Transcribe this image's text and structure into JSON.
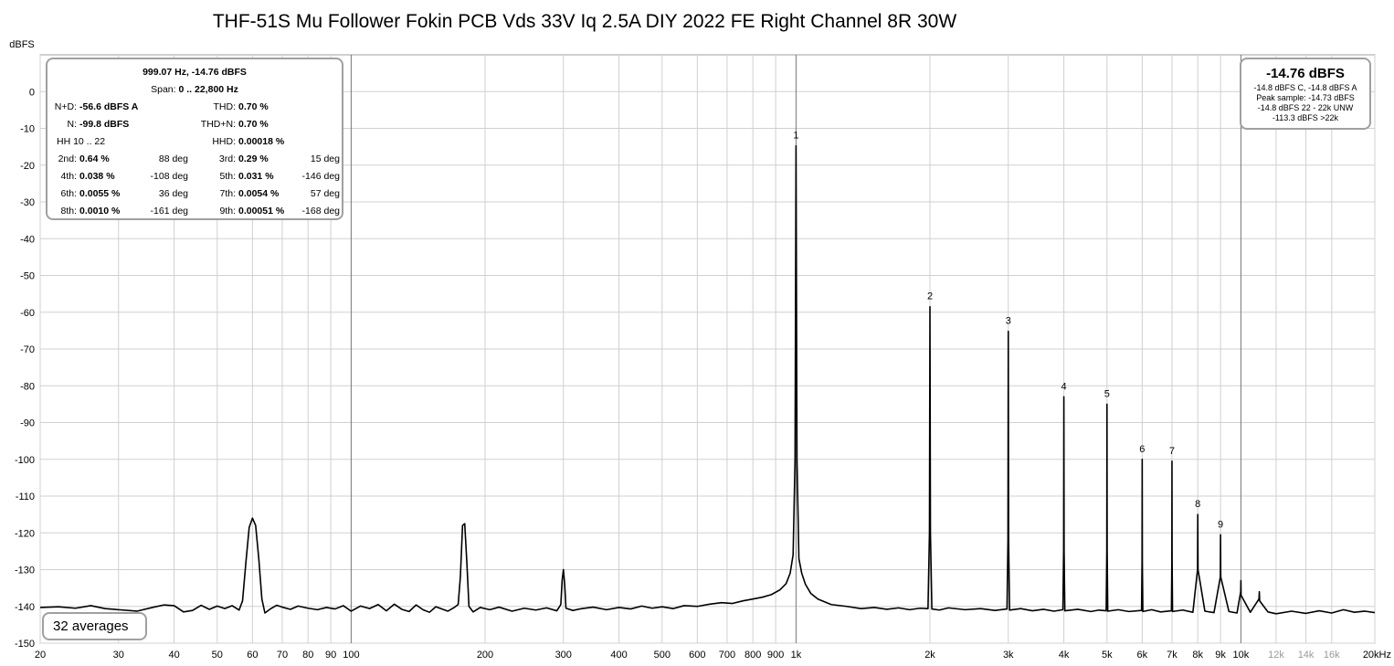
{
  "chart_data": {
    "type": "line",
    "title": "THF-51S Mu Follower Fokin PCB Vds 33V Iq 2.5A DIY 2022 FE Right Channel 8R 30W",
    "y_label": "dBFS",
    "log_x": true,
    "grid": true,
    "xlim": [
      20,
      20000
    ],
    "ylim": [
      -150,
      10
    ],
    "yticks": [
      0,
      -10,
      -20,
      -30,
      -40,
      -50,
      -60,
      -70,
      -80,
      -90,
      -100,
      -110,
      -120,
      -130,
      -140,
      -150
    ],
    "xticks": [
      20,
      30,
      40,
      50,
      60,
      70,
      80,
      90,
      100,
      200,
      300,
      400,
      500,
      600,
      700,
      800,
      900,
      {
        "value": 1000,
        "label": "1k"
      },
      {
        "value": 2000,
        "label": "2k"
      },
      {
        "value": 3000,
        "label": "3k"
      },
      {
        "value": 4000,
        "label": "4k"
      },
      {
        "value": 5000,
        "label": "5k"
      },
      {
        "value": 6000,
        "label": "6k"
      },
      {
        "value": 7000,
        "label": "7k"
      },
      {
        "value": 8000,
        "label": "8k"
      },
      {
        "value": 9000,
        "label": "9k"
      },
      {
        "value": 10000,
        "label": "10k"
      },
      {
        "value": 12000,
        "label": "12k",
        "color": "#999999"
      },
      {
        "value": 14000,
        "label": "14k",
        "color": "#999999"
      },
      {
        "value": 16000,
        "label": "16k",
        "color": "#999999"
      },
      {
        "value": 20000,
        "label": "20kHz"
      }
    ],
    "x": [
      20,
      22,
      24,
      26,
      28,
      30,
      33,
      36,
      38,
      40,
      42,
      44,
      46,
      48,
      50,
      52,
      54,
      56,
      57,
      58,
      59,
      60,
      61,
      62,
      63,
      64,
      66,
      68,
      70,
      73,
      76,
      80,
      84,
      88,
      92,
      96,
      100,
      105,
      110,
      115,
      120,
      125,
      130,
      135,
      140,
      145,
      150,
      155,
      160,
      165,
      170,
      174,
      176,
      178,
      180,
      182,
      184,
      188,
      195,
      205,
      215,
      230,
      245,
      260,
      275,
      290,
      296,
      298,
      300,
      302,
      304,
      315,
      330,
      350,
      375,
      400,
      425,
      450,
      475,
      500,
      530,
      560,
      600,
      640,
      680,
      720,
      760,
      800,
      840,
      880,
      920,
      950,
      970,
      985,
      995,
      1000,
      1005,
      1015,
      1030,
      1050,
      1080,
      1120,
      1200,
      1300,
      1400,
      1500,
      1600,
      1700,
      1800,
      1900,
      1980,
      1995,
      2000,
      2005,
      2020,
      2100,
      2200,
      2400,
      2600,
      2800,
      2980,
      2995,
      3000,
      3005,
      3020,
      3200,
      3400,
      3600,
      3800,
      3980,
      3995,
      4000,
      4005,
      4020,
      4300,
      4600,
      4800,
      4980,
      4995,
      5000,
      5005,
      5020,
      5300,
      5600,
      5980,
      5995,
      6000,
      6005,
      6020,
      6300,
      6600,
      6980,
      6995,
      7000,
      7005,
      7020,
      7400,
      7800,
      7990,
      8000,
      8010,
      8300,
      8700,
      8990,
      9000,
      9010,
      9400,
      9800,
      9990,
      10000,
      10010,
      10500,
      10980,
      11000,
      11020,
      11500,
      12000,
      13000,
      14000,
      15000,
      16000,
      17000,
      18000,
      19000,
      20000
    ],
    "series": [
      {
        "color": "#000000",
        "values": [
          -140.3,
          -140.1,
          -140.5,
          -139.8,
          -140.6,
          -140.9,
          -141.3,
          -140.2,
          -139.6,
          -139.8,
          -141.5,
          -141.1,
          -139.7,
          -140.8,
          -139.9,
          -140.6,
          -139.8,
          -141.0,
          -138.5,
          -128,
          -118.5,
          -116,
          -118,
          -127,
          -138,
          -141.8,
          -140.6,
          -139.7,
          -140.2,
          -140.8,
          -139.9,
          -140.5,
          -140.9,
          -140.3,
          -140.7,
          -139.8,
          -141.3,
          -139.9,
          -140.6,
          -139.5,
          -141.2,
          -139.4,
          -140.8,
          -141.4,
          -139.6,
          -140.9,
          -141.6,
          -140.1,
          -140.7,
          -141.3,
          -140.4,
          -139.5,
          -132,
          -118,
          -117.5,
          -128,
          -140,
          -141.5,
          -140.3,
          -140.9,
          -140.2,
          -141.3,
          -140.5,
          -141.0,
          -140.4,
          -141.2,
          -139.5,
          -133,
          -130,
          -134,
          -140.5,
          -141.1,
          -140.6,
          -140.2,
          -140.9,
          -140.3,
          -140.7,
          -139.9,
          -140.5,
          -140.1,
          -140.6,
          -139.8,
          -140.0,
          -139.4,
          -139.0,
          -139.2,
          -138.5,
          -138.0,
          -137.5,
          -136.8,
          -135.5,
          -133.8,
          -131,
          -126,
          -100,
          -14.76,
          -100,
          -127,
          -131,
          -134,
          -136.5,
          -138,
          -139.5,
          -140,
          -140.6,
          -140.3,
          -140.8,
          -140.4,
          -140.9,
          -140.5,
          -140.6,
          -120,
          -58.5,
          -120,
          -140.7,
          -141,
          -140.4,
          -140.9,
          -140.6,
          -141.1,
          -140.7,
          -122,
          -65.2,
          -122,
          -141,
          -140.6,
          -141.2,
          -140.8,
          -141.3,
          -140.9,
          -125,
          -83,
          -125,
          -141.2,
          -140.8,
          -141.4,
          -141,
          -141.2,
          -125,
          -85,
          -125,
          -141.3,
          -140.9,
          -141.4,
          -141.1,
          -128,
          -100,
          -128,
          -141.4,
          -140.9,
          -141.5,
          -141.2,
          -128,
          -100.5,
          -128,
          -141.4,
          -141,
          -141.6,
          -130,
          -115,
          -130,
          -141.3,
          -141.7,
          -132,
          -120.5,
          -132,
          -141.4,
          -141.8,
          -136,
          -133,
          -137,
          -141.6,
          -138,
          -136,
          -138.5,
          -141.5,
          -142,
          -141.3,
          -141.9,
          -141.2,
          -141.8,
          -140.9,
          -141.6,
          -141.3,
          -141.7
        ]
      }
    ],
    "harmonics": {
      "labels": [
        "1",
        "2",
        "3",
        "4",
        "5",
        "6",
        "7",
        "8",
        "9"
      ],
      "x": [
        1000,
        2000,
        3000,
        4000,
        5000,
        6000,
        7000,
        8000,
        9000
      ]
    },
    "measurement_box": {
      "header": "999.07 Hz, -14.76 dBFS",
      "span": {
        "label": "Span:",
        "value": "0 .. 22,800 Hz"
      },
      "rows": [
        [
          {
            "label": "N+D:",
            "value": "-56.6 dBFS A"
          },
          {
            "label": "THD:",
            "value": "0.70 %"
          }
        ],
        [
          {
            "label": "N:",
            "value": "-99.8 dBFS"
          },
          {
            "label": "THD+N:",
            "value": "0.70 %"
          }
        ],
        [
          {
            "label": "HH 10 .. 22"
          },
          {
            "label": "HHD:",
            "value": "0.00018 %"
          }
        ],
        [
          {
            "label": "2nd:",
            "value": "0.64 %"
          },
          {
            "text": "88 deg"
          },
          {
            "label": "3rd:",
            "value": "0.29 %"
          },
          {
            "text": "15 deg"
          }
        ],
        [
          {
            "label": "4th:",
            "value": "0.038 %"
          },
          {
            "text": "-108 deg"
          },
          {
            "label": "5th:",
            "value": "0.031 %"
          },
          {
            "text": "-146 deg"
          }
        ],
        [
          {
            "label": "6th:",
            "value": "0.0055 %"
          },
          {
            "text": "36 deg"
          },
          {
            "label": "7th:",
            "value": "0.0054 %"
          },
          {
            "text": "57 deg"
          }
        ],
        [
          {
            "label": "8th:",
            "value": "0.0010 %"
          },
          {
            "text": "-161 deg"
          },
          {
            "label": "9th:",
            "value": "0.00051 %"
          },
          {
            "text": "-168 deg"
          }
        ]
      ]
    },
    "level_box": {
      "main": "-14.76 dBFS",
      "lines": [
        "-14.8 dBFS C, -14.8 dBFS A",
        "Peak sample: -14.73 dBFS",
        "-14.8 dBFS 22 - 22k UNW",
        "-113.3 dBFS >22k"
      ]
    },
    "averages": "32 averages"
  }
}
